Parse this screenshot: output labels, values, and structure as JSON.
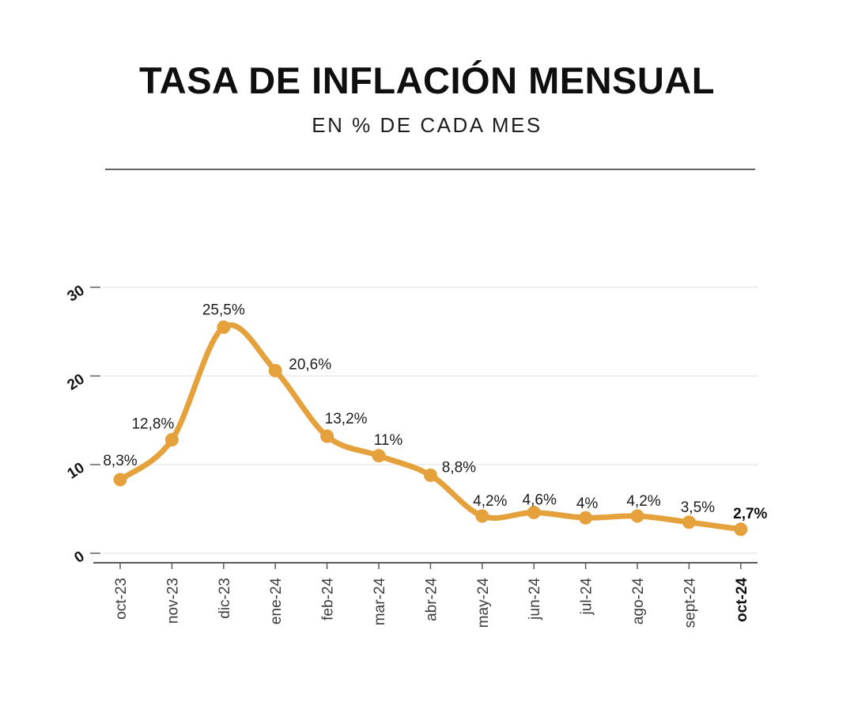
{
  "header": {
    "title": "TASA DE INFLACIÓN MENSUAL",
    "subtitle": "EN % DE CADA MES"
  },
  "chart_data": {
    "type": "line",
    "title": "TASA DE INFLACIÓN MENSUAL",
    "subtitle": "EN % DE CADA MES",
    "categories": [
      "oct-23",
      "nov-23",
      "dic-23",
      "ene-24",
      "feb-24",
      "mar-24",
      "abr-24",
      "may-24",
      "jun-24",
      "jul-24",
      "ago-24",
      "sept-24",
      "oct-24"
    ],
    "values": [
      8.3,
      12.8,
      25.5,
      20.6,
      13.2,
      11,
      8.8,
      4.2,
      4.6,
      4,
      4.2,
      3.5,
      2.7
    ],
    "point_labels": [
      "8,3%",
      "12,8%",
      "25,5%",
      "20,6%",
      "13,2%",
      "11%",
      "8,8%",
      "4,2%",
      "4,6%",
      "4%",
      "4,2%",
      "3,5%",
      "2,7%"
    ],
    "ylim": [
      0,
      30
    ],
    "yticks": [
      0,
      10,
      20,
      30
    ],
    "grid": true,
    "legend": "none",
    "highlight_last_point": true,
    "line_color": "#E5A23C",
    "marker_color": "#E5A23C",
    "label_color": "#1c1c1c",
    "grid_color": "#eaeaea",
    "axis_color": "#5c5c5c"
  }
}
